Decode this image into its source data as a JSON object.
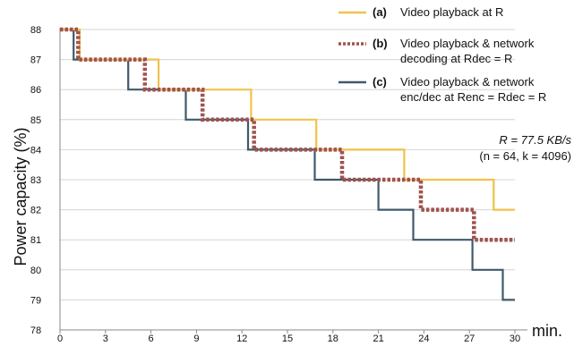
{
  "chart_data": {
    "type": "line",
    "title": "",
    "xlabel": "min.",
    "ylabel": "Power capacity (%)",
    "xlim": [
      0,
      30
    ],
    "ylim": [
      78,
      88
    ],
    "xticks": [
      0,
      3,
      6,
      9,
      12,
      15,
      18,
      21,
      24,
      27,
      30
    ],
    "yticks": [
      78,
      79,
      80,
      81,
      82,
      83,
      84,
      85,
      86,
      87,
      88
    ],
    "grid": "horizontal",
    "legend_position": "top-right",
    "annotation": {
      "main": "R = 77.5 KB/s",
      "sub": "(n = 64, k = 4096)"
    },
    "series": [
      {
        "id": "a",
        "letter": "(a)",
        "name": "Video playback at R",
        "label_lines": [
          "Video playback at R"
        ],
        "color": "#f0c24b",
        "style": "solid",
        "x": [
          0,
          1.3,
          1.3,
          6.5,
          6.5,
          12.6,
          12.6,
          16.9,
          16.9,
          22.7,
          22.7,
          28.6,
          28.6,
          30
        ],
        "y": [
          88,
          88,
          87,
          87,
          86,
          86,
          85,
          85,
          84,
          84,
          83,
          83,
          82,
          82
        ]
      },
      {
        "id": "b",
        "letter": "(b)",
        "name": "Video playback & network decoding at Rdec = R",
        "label_lines": [
          "Video playback & network",
          "decoding at Rdec = R"
        ],
        "color": "#a0524f",
        "style": "dotted",
        "x": [
          0,
          1.2,
          1.2,
          5.6,
          5.6,
          9.4,
          9.4,
          12.8,
          12.8,
          18.6,
          18.6,
          23.8,
          23.8,
          27.3,
          27.3,
          30
        ],
        "y": [
          88,
          88,
          87,
          87,
          86,
          86,
          85,
          85,
          84,
          84,
          83,
          83,
          82,
          82,
          81,
          81
        ]
      },
      {
        "id": "c",
        "letter": "(c)",
        "name": "Video playback & network enc/dec at Renc = Rdec = R",
        "label_lines": [
          "Video playback & network",
          "enc/dec at Renc = Rdec = R"
        ],
        "color": "#3f5a6b",
        "style": "solid",
        "x": [
          0,
          0.9,
          0.9,
          4.5,
          4.5,
          8.3,
          8.3,
          12.4,
          12.4,
          16.8,
          16.8,
          21.0,
          21.0,
          23.3,
          23.3,
          27.2,
          27.2,
          29.2,
          29.2,
          30
        ],
        "y": [
          88,
          88,
          87,
          87,
          86,
          86,
          85,
          85,
          84,
          84,
          83,
          83,
          82,
          82,
          81,
          81,
          80,
          80,
          79,
          79
        ]
      }
    ]
  }
}
